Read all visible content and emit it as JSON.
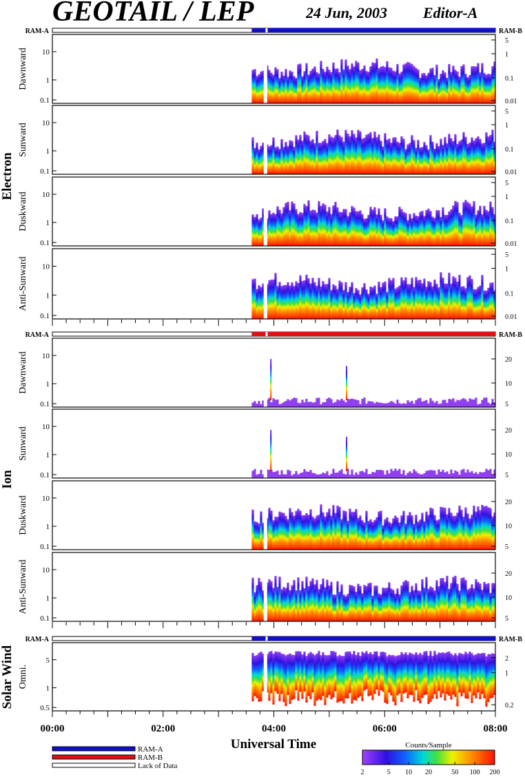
{
  "header": {
    "title": "GEOTAIL / LEP",
    "date": "24 Jun, 2003",
    "editor": "Editor-A"
  },
  "colors": {
    "ram_a": "#1010c8",
    "ram_b": "#e01010",
    "lack": "#ffffff"
  },
  "groups": [
    {
      "name": "Electron",
      "ram_left": "RAM-A",
      "ram_right": "RAM-B",
      "ram_color": "ram_a",
      "panels": [
        {
          "label": "Dawnward",
          "left_ticks": [
            "10",
            "1",
            "0.1"
          ],
          "right_ticks": [
            "5",
            "1",
            "0.1",
            "0.01"
          ]
        },
        {
          "label": "Sunward",
          "left_ticks": [
            "10",
            "1",
            "0.1"
          ],
          "right_ticks": [
            "5",
            "1",
            "0.1",
            "0.01"
          ]
        },
        {
          "label": "Duskward",
          "left_ticks": [
            "10",
            "1",
            "0.1"
          ],
          "right_ticks": [
            "5",
            "1",
            "0.1",
            "0.01"
          ]
        },
        {
          "label": "Anti-Sunward",
          "left_ticks": [
            "10",
            "1",
            "0.1"
          ],
          "right_ticks": [
            "5",
            "1",
            "0.1",
            "0.01"
          ]
        }
      ]
    },
    {
      "name": "Ion",
      "ram_left": "RAM-A",
      "ram_right": "RAM-B",
      "ram_color": "ram_b",
      "panels": [
        {
          "label": "Dawnward",
          "left_ticks": [
            "10",
            "1",
            "0.1"
          ],
          "right_ticks": [
            "20",
            "10",
            "5"
          ]
        },
        {
          "label": "Sunward",
          "left_ticks": [
            "10",
            "1",
            "0.1"
          ],
          "right_ticks": [
            "20",
            "10",
            "5"
          ]
        },
        {
          "label": "Duskward",
          "left_ticks": [
            "10",
            "1",
            "0.1"
          ],
          "right_ticks": [
            "20",
            "10",
            "5"
          ]
        },
        {
          "label": "Anti-Sunward",
          "left_ticks": [
            "10",
            "1",
            "0.1"
          ],
          "right_ticks": [
            "20",
            "10",
            "5"
          ]
        }
      ]
    },
    {
      "name": "Solar Wind",
      "ram_left": "RAM-A",
      "ram_right": "RAM-B",
      "ram_color": "ram_a",
      "panels": [
        {
          "label": "Omni.",
          "left_ticks": [
            "5",
            "1",
            "0.5"
          ],
          "right_ticks": [
            "2",
            "1",
            "0.2"
          ]
        }
      ]
    }
  ],
  "chart_data": {
    "type": "heatmap",
    "xlabel": "Universal Time",
    "x_ticks": [
      "00:00",
      "02:00",
      "04:00",
      "06:00",
      "08:00"
    ],
    "xlim": [
      "00:00",
      "08:00"
    ],
    "data_start": "03:36",
    "colorbar": {
      "title": "Counts/Sample",
      "ticks": [
        "2",
        "5",
        "10",
        "20",
        "50",
        "100",
        "200"
      ],
      "range": [
        2,
        200
      ],
      "scale": "log"
    }
  },
  "legend": [
    {
      "label": "RAM-A",
      "color": "#1010c8"
    },
    {
      "label": "RAM-B",
      "color": "#e01010"
    },
    {
      "label": "Lack of Data",
      "color": "#ffffff"
    }
  ]
}
